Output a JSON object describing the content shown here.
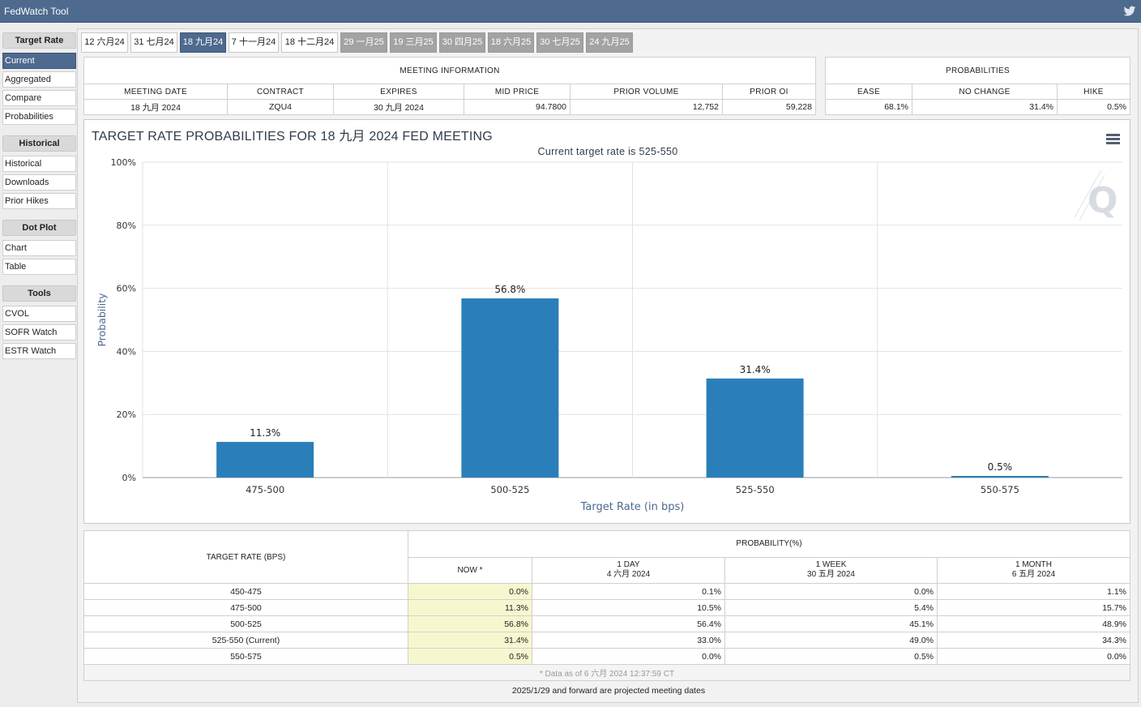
{
  "app": {
    "title": "FedWatch Tool"
  },
  "sidebar": {
    "sections": [
      {
        "heading": "Target Rate",
        "items": [
          "Current",
          "Aggregated",
          "Compare",
          "Probabilities"
        ]
      },
      {
        "heading": "Historical",
        "items": [
          "Historical",
          "Downloads",
          "Prior Hikes"
        ]
      },
      {
        "heading": "Dot Plot",
        "items": [
          "Chart",
          "Table"
        ]
      },
      {
        "heading": "Tools",
        "items": [
          "CVOL",
          "SOFR Watch",
          "ESTR Watch"
        ]
      }
    ]
  },
  "tabs": [
    "12 六月24",
    "31 七月24",
    "18 九月24",
    "7 十一月24",
    "18 十二月24",
    "29 一月25",
    "19 三月25",
    "30 四月25",
    "18 六月25",
    "30 七月25",
    "24 九月25"
  ],
  "meeting_info": {
    "heading": "MEETING INFORMATION",
    "columns": [
      "MEETING DATE",
      "CONTRACT",
      "EXPIRES",
      "MID PRICE",
      "PRIOR VOLUME",
      "PRIOR OI"
    ],
    "values": [
      "18 九月 2024",
      "ZQU4",
      "30 九月 2024",
      "94.7800",
      "12,752",
      "59,228"
    ]
  },
  "probabilities": {
    "heading": "PROBABILITIES",
    "columns": [
      "EASE",
      "NO CHANGE",
      "HIKE"
    ],
    "values": [
      "68.1%",
      "31.4%",
      "0.5%"
    ]
  },
  "chart_title": "TARGET RATE PROBABILITIES FOR 18 九月 2024 FED MEETING",
  "chart_data": {
    "type": "bar",
    "title": "TARGET RATE PROBABILITIES FOR 18 九月 2024 FED MEETING",
    "subtitle": "Current target rate is 525-550",
    "categories": [
      "475-500",
      "500-525",
      "525-550",
      "550-575"
    ],
    "values": [
      11.3,
      56.8,
      31.4,
      0.5
    ],
    "data_labels": [
      "11.3%",
      "56.8%",
      "31.4%",
      "0.5%"
    ],
    "xlabel": "Target Rate (in bps)",
    "ylabel": "Probability",
    "ylim": [
      0,
      100
    ],
    "yticks": [
      "0%",
      "20%",
      "40%",
      "60%",
      "80%",
      "100%"
    ],
    "color": "#2a7fba",
    "grid": true
  },
  "prob_table": {
    "rate_heading": "TARGET RATE (BPS)",
    "prob_heading": "PROBABILITY(%)",
    "columns": [
      {
        "line1": "NOW *",
        "line2": ""
      },
      {
        "line1": "1 DAY",
        "line2": "4 六月 2024"
      },
      {
        "line1": "1 WEEK",
        "line2": "30 五月 2024"
      },
      {
        "line1": "1 MONTH",
        "line2": "6 五月 2024"
      }
    ],
    "rows": [
      {
        "rate": "450-475",
        "now": "0.0%",
        "day": "0.1%",
        "week": "0.0%",
        "month": "1.1%"
      },
      {
        "rate": "475-500",
        "now": "11.3%",
        "day": "10.5%",
        "week": "5.4%",
        "month": "15.7%"
      },
      {
        "rate": "500-525",
        "now": "56.8%",
        "day": "56.4%",
        "week": "45.1%",
        "month": "48.9%"
      },
      {
        "rate": "525-550 (Current)",
        "now": "31.4%",
        "day": "33.0%",
        "week": "49.0%",
        "month": "34.3%"
      },
      {
        "rate": "550-575",
        "now": "0.5%",
        "day": "0.0%",
        "week": "0.5%",
        "month": "0.0%"
      }
    ],
    "footnote": "* Data as of 6 六月 2024 12:37:59 CT"
  },
  "projected_note": "2025/1/29 and forward are projected meeting dates"
}
